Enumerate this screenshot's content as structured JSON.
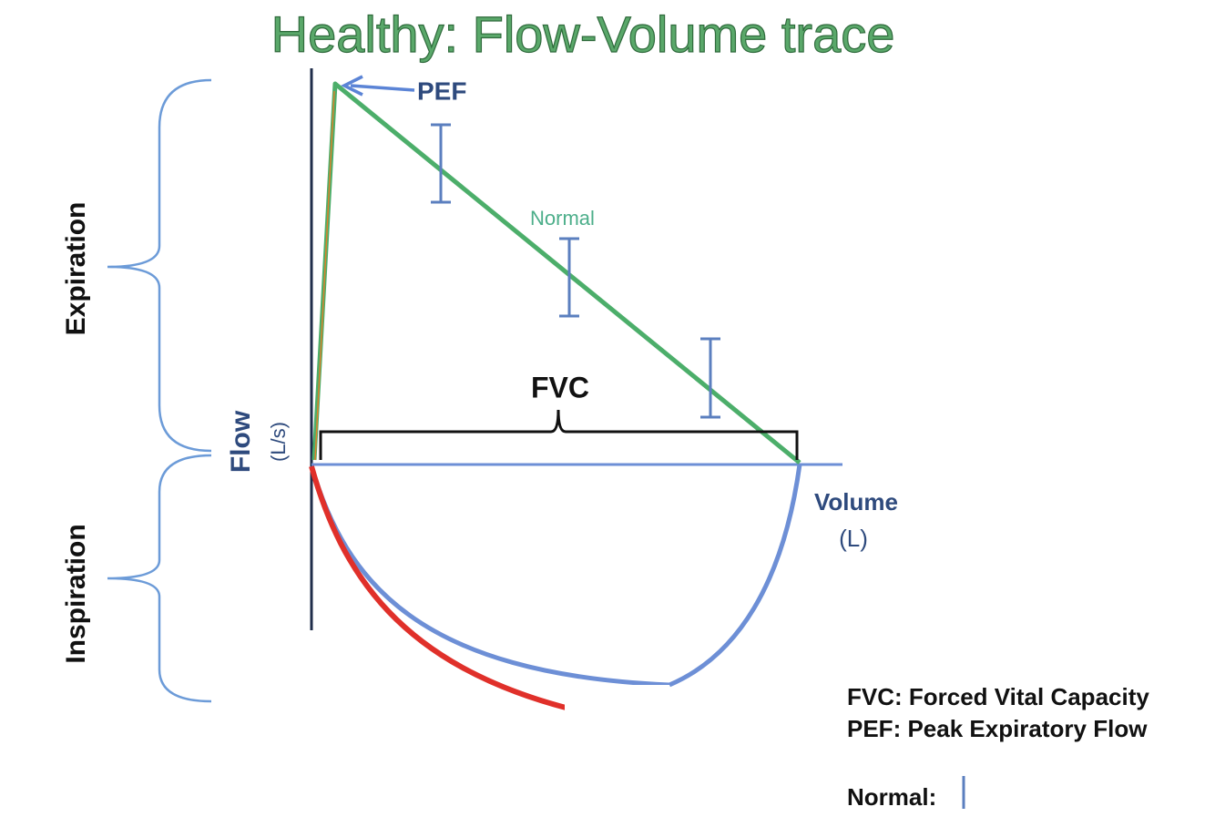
{
  "title": "Healthy: Flow-Volume trace",
  "trace": {
    "peak_label": "PEF",
    "normal_label": "Normal",
    "capacity_label": "FVC"
  },
  "axes": {
    "y_label": "Flow",
    "y_unit": "(L/s)",
    "x_label": "Volume",
    "x_unit": "(L)"
  },
  "phases": [
    "Expiration",
    "Inspiration"
  ],
  "legend": [
    "FVC: Forced Vital Capacity",
    "PEF: Peak Expiratory Flow",
    "Normal:"
  ]
}
